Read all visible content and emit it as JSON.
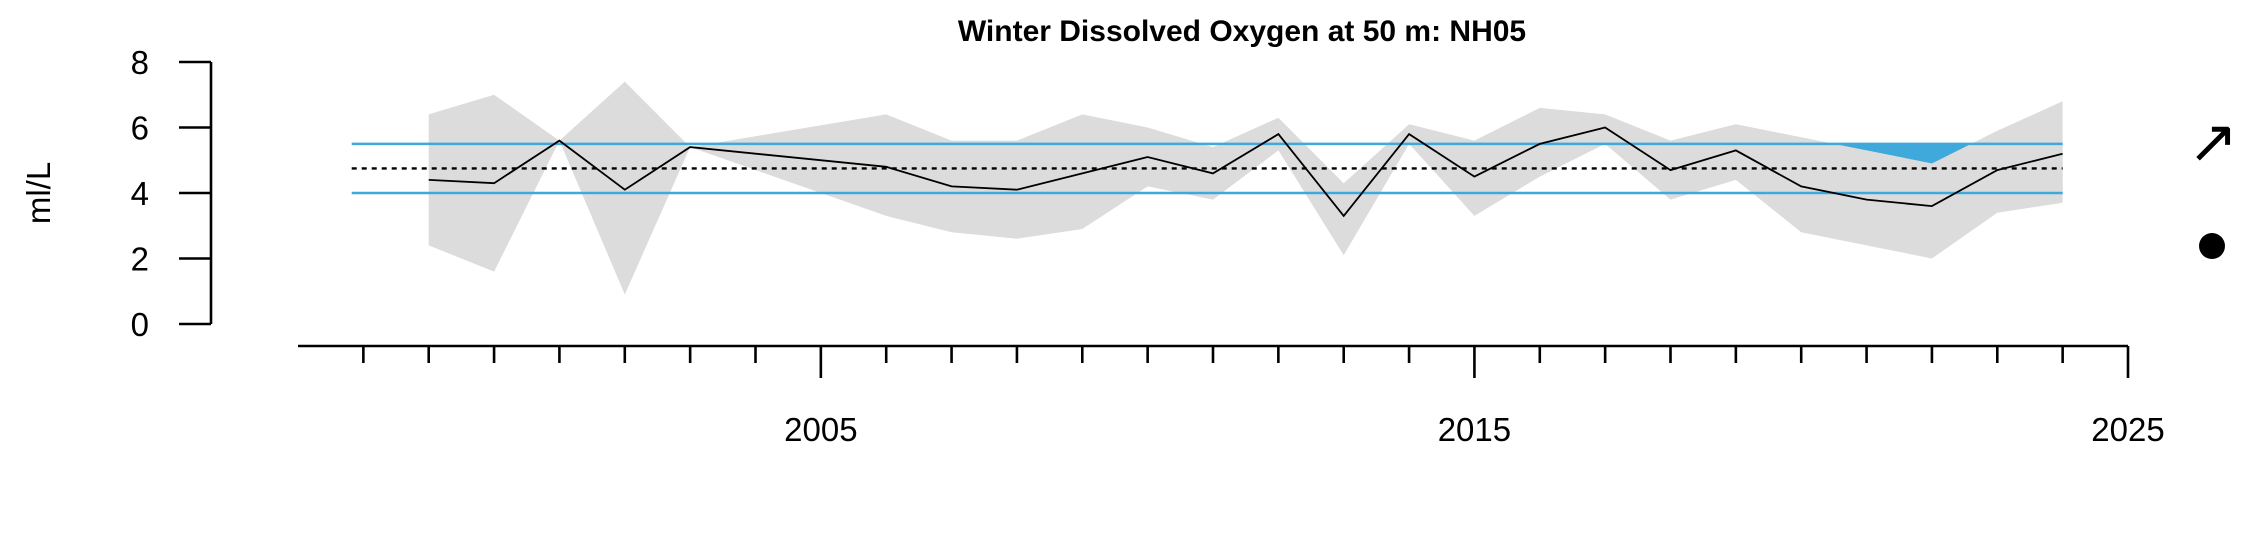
{
  "chart_data": {
    "type": "line",
    "title": "Winter Dissolved Oxygen at 50 m: NH05",
    "xlabel": "",
    "ylabel": "ml/L",
    "xlim": [
      1997.0,
      2025.0
    ],
    "ylim": [
      0,
      8
    ],
    "x_ticks_major": [
      2005,
      2015,
      2025
    ],
    "x_ticks_minor": [
      1998,
      1999,
      2000,
      2001,
      2002,
      2003,
      2004,
      2006,
      2007,
      2008,
      2009,
      2010,
      2011,
      2012,
      2013,
      2014,
      2016,
      2017,
      2018,
      2019,
      2020,
      2021,
      2022,
      2023,
      2024
    ],
    "y_ticks": [
      0,
      2,
      4,
      6,
      8
    ],
    "series": [
      {
        "x": [
          1999,
          2000,
          2001,
          2002,
          2003,
          2006,
          2007,
          2008,
          2009,
          2010,
          2011,
          2012,
          2013,
          2014,
          2015,
          2016,
          2017,
          2018,
          2019,
          2020,
          2021,
          2022,
          2023,
          2024
        ],
        "values": [
          4.4,
          4.3,
          5.6,
          4.1,
          5.4,
          4.8,
          4.2,
          4.1,
          4.6,
          5.1,
          4.6,
          5.8,
          3.3,
          5.8,
          4.5,
          5.5,
          6.0,
          4.7,
          5.3,
          4.2,
          3.8,
          3.6,
          4.7,
          5.2
        ],
        "upper": [
          6.4,
          7.0,
          5.6,
          7.4,
          5.4,
          6.4,
          5.6,
          5.6,
          6.4,
          6.0,
          5.4,
          6.3,
          4.3,
          6.1,
          5.6,
          6.6,
          6.4,
          5.6,
          6.1,
          5.7,
          5.3,
          4.9,
          5.9,
          6.8
        ],
        "lower": [
          2.4,
          1.6,
          5.6,
          0.9,
          5.4,
          3.3,
          2.8,
          2.6,
          2.9,
          4.2,
          3.8,
          5.3,
          2.1,
          5.5,
          3.3,
          4.5,
          5.5,
          3.8,
          4.4,
          2.8,
          2.4,
          2.0,
          3.4,
          3.7
        ],
        "color": "#000000",
        "band_color": "#dcdcdc"
      }
    ],
    "reference_lines": {
      "mean": 4.75,
      "upper_sd": 5.5,
      "lower_sd": 4.0,
      "sd_line_color": "#3fa9dc",
      "mean_line_color": "#000000"
    },
    "recent_window": {
      "x_start": 2020,
      "x_end": 2024,
      "shade_color": "#b8d1de",
      "exceed_color": "#3fa9dc"
    },
    "indicators": {
      "trend": "increasing",
      "trend_symbol": "↗",
      "recent_mean_status": "within one standard deviation",
      "status_symbol": "●"
    },
    "grid": false,
    "legend": "none"
  }
}
